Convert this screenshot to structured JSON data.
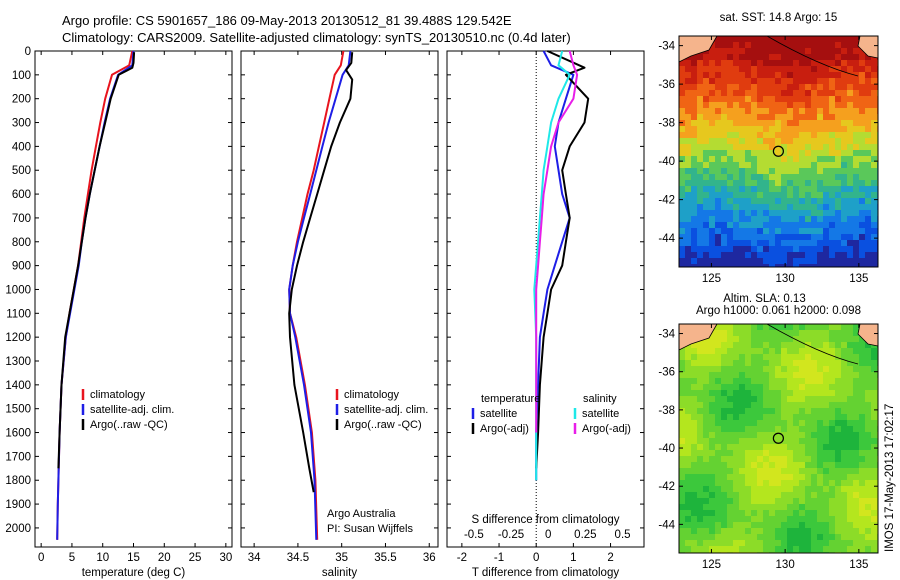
{
  "header": {
    "line1": "Argo profile: CS 5901657_186 09-May-2013 20130512_81 39.488S 129.542E",
    "line2": "Climatology: CARS2009. Satellite-adjusted climatology: synTS_20130510.nc (0.4d later)"
  },
  "side_stamp": "IMOS 17-May-2013 17:02:17",
  "colors": {
    "climatology": "#e8141e",
    "satellite": "#1e1ee6",
    "argo": "#000000",
    "sal_sat": "#1ee8e8",
    "sal_argo": "#e81ee8"
  },
  "chart_data": [
    {
      "type": "line",
      "panel": "temperature",
      "xlabel": "temperature (deg C)",
      "ylabel": "",
      "xlim": [
        -1,
        31
      ],
      "ylim": [
        2080,
        0
      ],
      "xticks": [
        0,
        5,
        10,
        15,
        20,
        25,
        30
      ],
      "yticks": [
        0,
        100,
        200,
        300,
        400,
        500,
        600,
        700,
        800,
        900,
        1000,
        1100,
        1200,
        1300,
        1400,
        1500,
        1600,
        1700,
        1800,
        1900,
        2000
      ],
      "legend": [
        "climatology",
        "satellite-adj. clim.",
        "Argo(..raw -QC)"
      ],
      "series": [
        {
          "name": "climatology",
          "color": "#e8141e",
          "x": [
            14.8,
            14.3,
            11.5,
            10.4,
            9.6,
            8.9,
            8.2,
            7.6,
            7.0,
            6.5,
            6.0,
            5.3,
            4.6,
            4.0,
            3.3,
            3.0,
            2.8,
            2.7,
            2.6
          ],
          "y": [
            0,
            60,
            100,
            200,
            300,
            400,
            500,
            600,
            700,
            800,
            900,
            1000,
            1100,
            1200,
            1400,
            1600,
            1800,
            1900,
            2050
          ]
        },
        {
          "name": "satellite-adj. clim.",
          "color": "#1e1ee6",
          "x": [
            15.0,
            14.8,
            12.5,
            11.2,
            10.3,
            9.5,
            8.7,
            7.9,
            7.2,
            6.6,
            6.1,
            5.4,
            4.7,
            4.0,
            3.3,
            3.0,
            2.8,
            2.7,
            2.6
          ],
          "y": [
            0,
            60,
            100,
            200,
            300,
            400,
            500,
            600,
            700,
            800,
            900,
            1000,
            1100,
            1200,
            1400,
            1600,
            1800,
            1900,
            2050
          ]
        },
        {
          "name": "Argo(..raw -QC)",
          "color": "#000000",
          "x": [
            15.1,
            15.0,
            14.8,
            12.6,
            11.3,
            10.4,
            9.5,
            8.7,
            7.9,
            7.2,
            6.6,
            6.0,
            5.3,
            4.6,
            3.9,
            3.3,
            3.0,
            2.8
          ],
          "y": [
            5,
            50,
            70,
            100,
            200,
            300,
            400,
            500,
            600,
            700,
            800,
            900,
            1000,
            1100,
            1200,
            1400,
            1600,
            1750
          ]
        }
      ]
    },
    {
      "type": "line",
      "panel": "salinity",
      "xlabel": "salinity",
      "xlim": [
        33.85,
        36.1
      ],
      "ylim": [
        2080,
        0
      ],
      "xticks": [
        34,
        34.5,
        35,
        35.5,
        36
      ],
      "xticklabels": [
        "34",
        "34.5",
        "35",
        "35.5",
        "36"
      ],
      "legend": [
        "climatology",
        "satellite-adj. clim.",
        "Argo(..raw -QC)"
      ],
      "annotation": [
        "Argo Australia",
        "PI: Susan Wijffels"
      ],
      "series": [
        {
          "name": "climatology",
          "color": "#e8141e",
          "x": [
            35.02,
            34.99,
            34.92,
            34.86,
            34.8,
            34.74,
            34.68,
            34.61,
            34.55,
            34.49,
            34.44,
            34.4,
            34.41,
            34.48,
            34.58,
            34.66,
            34.7,
            34.72
          ],
          "y": [
            0,
            60,
            100,
            200,
            300,
            400,
            500,
            600,
            700,
            800,
            900,
            1000,
            1100,
            1200,
            1400,
            1600,
            1800,
            2050
          ]
        },
        {
          "name": "satellite-adj. clim.",
          "color": "#1e1ee6",
          "x": [
            35.1,
            35.08,
            35.01,
            34.93,
            34.85,
            34.78,
            34.71,
            34.64,
            34.57,
            34.5,
            34.44,
            34.4,
            34.41,
            34.47,
            34.57,
            34.65,
            34.69,
            34.71
          ],
          "y": [
            0,
            60,
            100,
            200,
            300,
            400,
            500,
            600,
            700,
            800,
            900,
            1000,
            1100,
            1200,
            1400,
            1600,
            1800,
            2050
          ]
        },
        {
          "name": "Argo(..raw -QC)",
          "color": "#000000",
          "x": [
            35.12,
            35.11,
            35.05,
            35.12,
            35.1,
            34.98,
            34.88,
            34.8,
            34.72,
            34.64,
            34.56,
            34.49,
            34.43,
            34.4,
            34.41,
            34.46,
            34.56,
            34.63,
            34.68
          ],
          "y": [
            5,
            50,
            80,
            120,
            200,
            300,
            400,
            500,
            600,
            700,
            800,
            900,
            1000,
            1100,
            1200,
            1400,
            1600,
            1750,
            1850
          ]
        }
      ]
    },
    {
      "type": "line",
      "panel": "difference",
      "xlabel": "T difference from climatology",
      "top_label": "S difference from climatology",
      "xlim": [
        -2.4,
        2.9
      ],
      "ylim": [
        2080,
        0
      ],
      "xticks": [
        -2,
        -1,
        0,
        1,
        2
      ],
      "xticklabels": [
        "-2",
        "-1",
        "0",
        "1",
        "2"
      ],
      "sal_ticklabels": [
        "-0.5",
        "-0.25",
        "0",
        "0.25",
        "0.5"
      ],
      "legend_headers": [
        "temperature",
        "salinity"
      ],
      "legend": [
        "satellite",
        "Argo(-adj)",
        "satellite",
        "Argo(-adj)"
      ],
      "series": [
        {
          "name": "satellite",
          "group": "temperature",
          "color": "#1e1ee6",
          "x": [
            0.2,
            0.4,
            1.0,
            0.8,
            0.6,
            0.5,
            0.6,
            0.7,
            0.9,
            0.7,
            0.5,
            0.3,
            0.2,
            0.1,
            0.05,
            0.0,
            0.0
          ],
          "y": [
            0,
            60,
            100,
            200,
            300,
            400,
            500,
            600,
            700,
            800,
            900,
            1000,
            1100,
            1200,
            1400,
            1600,
            1800
          ]
        },
        {
          "name": "Argo(-adj)",
          "group": "temperature",
          "color": "#000000",
          "x": [
            0.3,
            1.3,
            0.8,
            1.4,
            1.3,
            0.9,
            0.7,
            0.8,
            0.9,
            0.8,
            0.7,
            0.4,
            0.3,
            0.2,
            0.1,
            0.05,
            0.0
          ],
          "y": [
            0,
            70,
            100,
            200,
            300,
            400,
            500,
            600,
            700,
            800,
            900,
            1000,
            1100,
            1200,
            1400,
            1600,
            1750
          ]
        },
        {
          "name": "satellite",
          "group": "salinity",
          "color": "#1ee8e8",
          "x": [
            0.7,
            0.6,
            0.9,
            0.6,
            0.4,
            0.3,
            0.2,
            0.15,
            0.1,
            0.05,
            0.0,
            -0.05,
            0.0,
            0.0,
            0.0
          ],
          "y": [
            0,
            60,
            100,
            200,
            300,
            400,
            500,
            600,
            700,
            800,
            900,
            1000,
            1200,
            1400,
            1800
          ]
        },
        {
          "name": "Argo(-adj)",
          "group": "salinity",
          "color": "#e81ee8",
          "x": [
            0.9,
            1.0,
            1.1,
            1.0,
            0.6,
            0.4,
            0.3,
            0.2,
            0.15,
            0.1,
            0.05,
            0.0,
            0.0,
            0.0
          ],
          "y": [
            0,
            60,
            100,
            200,
            300,
            400,
            500,
            600,
            700,
            800,
            900,
            1000,
            1200,
            1600
          ]
        }
      ]
    },
    {
      "type": "heatmap",
      "panel": "sst-map",
      "title": "sat. SST: 14.8  Argo: 15",
      "xticks": [
        125,
        130,
        135
      ],
      "yticks": [
        -34,
        -36,
        -38,
        -40,
        -42,
        -44
      ],
      "xticklabels": [
        "125",
        "130",
        "135"
      ],
      "yticklabels": [
        "-34",
        "-36",
        "-38",
        "-40",
        "-42",
        "-44"
      ],
      "marker": {
        "lon": 129.542,
        "lat": -39.488
      }
    },
    {
      "type": "heatmap",
      "panel": "sla-map",
      "title_line1": "Altim. SLA: 0.13",
      "title_line2": "Argo h1000: 0.061  h2000: 0.098",
      "xticks": [
        125,
        130,
        135
      ],
      "yticks": [
        -34,
        -36,
        -38,
        -40,
        -42,
        -44
      ],
      "xticklabels": [
        "125",
        "130",
        "135"
      ],
      "yticklabels": [
        "-34",
        "-36",
        "-38",
        "-40",
        "-42",
        "-44"
      ],
      "marker": {
        "lon": 129.542,
        "lat": -39.488
      }
    }
  ]
}
